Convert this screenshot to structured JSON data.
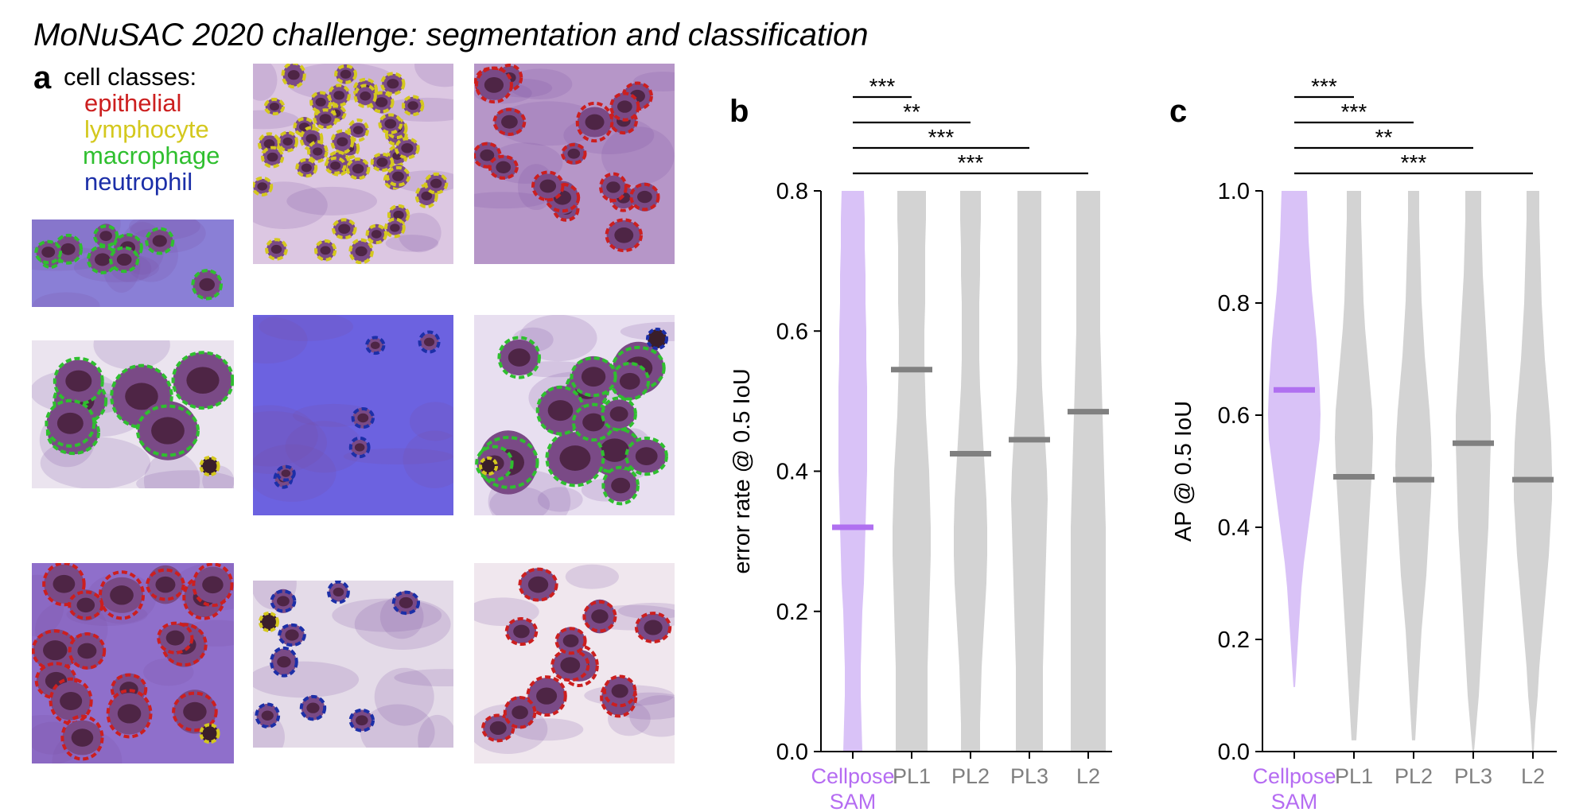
{
  "figure": {
    "title": "MoNuSAC 2020 challenge: segmentation and classification"
  },
  "panel_a": {
    "letter": "a",
    "legend_heading": "cell classes:",
    "classes": [
      {
        "name": "epithelial",
        "color": "#cc1f1f"
      },
      {
        "name": "lymphocyte",
        "color": "#d4c81e"
      },
      {
        "name": "macrophage",
        "color": "#2fbf2f"
      },
      {
        "name": "neutrophil",
        "color": "#1c2fa8"
      }
    ]
  },
  "colors": {
    "cellpose": "#d9c2f7",
    "cellpose_median": "#b070f0",
    "cellpose_label": "#b56cf2",
    "other": "#d3d3d3",
    "other_median": "#808080",
    "other_label": "#808080"
  },
  "chart_data": [
    {
      "type": "violin",
      "panel": "b",
      "ylabel": "error rate @ 0.5 IoU",
      "ylim": [
        0,
        0.8
      ],
      "yticks": [
        "0.0",
        "0.2",
        "0.4",
        "0.6",
        "0.8"
      ],
      "categories": [
        "Cellpose SAM",
        "PL1",
        "PL2",
        "PL3",
        "L2"
      ],
      "category_lines": [
        [
          "Cellpose",
          "SAM"
        ],
        [
          "PL1"
        ],
        [
          "PL2"
        ],
        [
          "PL3"
        ],
        [
          "L2"
        ]
      ],
      "medians": [
        0.32,
        0.545,
        0.425,
        0.445,
        0.485
      ],
      "significance": [
        {
          "from": 0,
          "to": 1,
          "label": "***"
        },
        {
          "from": 0,
          "to": 2,
          "label": "**"
        },
        {
          "from": 0,
          "to": 3,
          "label": "***"
        },
        {
          "from": 0,
          "to": 4,
          "label": "***"
        }
      ]
    },
    {
      "type": "violin",
      "panel": "c",
      "ylabel": "AP @ 0.5 IoU",
      "ylim": [
        0,
        1.0
      ],
      "yticks": [
        "0.0",
        "0.2",
        "0.4",
        "0.6",
        "0.8",
        "1.0"
      ],
      "categories": [
        "Cellpose SAM",
        "PL1",
        "PL2",
        "PL3",
        "L2"
      ],
      "category_lines": [
        [
          "Cellpose",
          "SAM"
        ],
        [
          "PL1"
        ],
        [
          "PL2"
        ],
        [
          "PL3"
        ],
        [
          "L2"
        ]
      ],
      "medians": [
        0.645,
        0.49,
        0.485,
        0.55,
        0.485
      ],
      "significance": [
        {
          "from": 0,
          "to": 1,
          "label": "***"
        },
        {
          "from": 0,
          "to": 2,
          "label": "***"
        },
        {
          "from": 0,
          "to": 3,
          "label": "**"
        },
        {
          "from": 0,
          "to": 4,
          "label": "***"
        }
      ]
    }
  ]
}
